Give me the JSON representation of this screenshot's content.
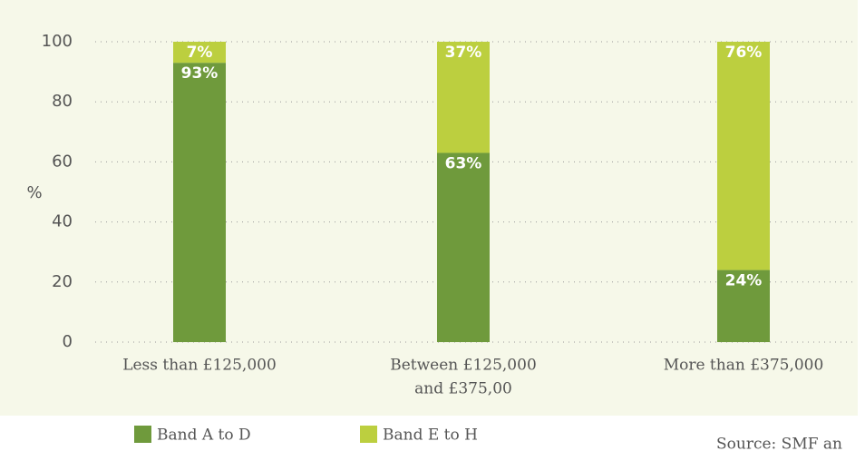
{
  "chart_data": {
    "type": "stacked_bar",
    "y_label": "%",
    "categories": [
      [
        "Less than £125,000"
      ],
      [
        "Between £125,000",
        "and £375,00"
      ],
      [
        "More than £375,000"
      ]
    ],
    "series": [
      {
        "name": "Band A to D",
        "color": "#6f9a3c",
        "values": [
          93,
          63,
          24
        ],
        "value_labels": [
          "93%",
          "63%",
          "24%"
        ]
      },
      {
        "name": "Band E to H",
        "color": "#bccf3f",
        "values": [
          7,
          37,
          76
        ],
        "value_labels": [
          "7%",
          "37%",
          "76%"
        ]
      }
    ],
    "ylim": [
      0,
      100
    ],
    "yticks": [
      0,
      20,
      40,
      60,
      80,
      100
    ],
    "grid": true,
    "source": "Source: SMF an"
  }
}
